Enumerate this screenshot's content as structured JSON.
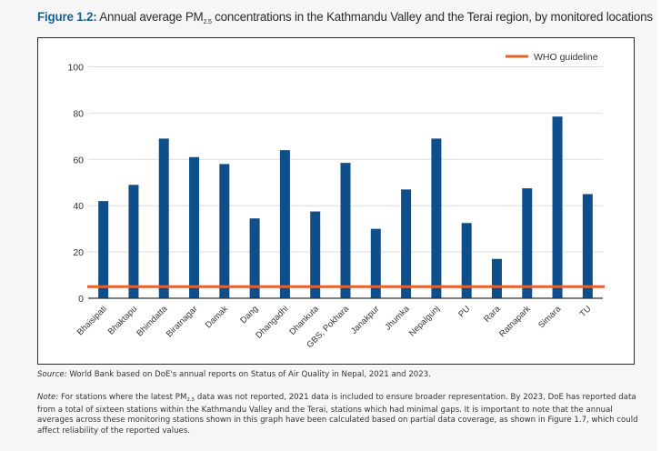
{
  "figure": {
    "label": "Figure 1.2:",
    "title_before_sub": "Annual average PM",
    "title_sub": "2.5",
    "title_after_sub": " concentrations in the Kathmandu Valley and the Terai region, by monitored locations"
  },
  "colors": {
    "bar": "#0e4f8b",
    "who_line": "#e8602c",
    "gridline": "#dddddd",
    "axis": "#333333",
    "title_accent": "#1b5e8c"
  },
  "chart_data": {
    "type": "bar",
    "title": "Annual average PM2.5 concentrations in the Kathmandu Valley and the Terai region, by monitored locations",
    "xlabel": "",
    "ylabel": "",
    "ylim": [
      0,
      100
    ],
    "yticks": [
      0,
      20,
      40,
      60,
      80,
      100
    ],
    "grid": true,
    "legend_position": "top-right",
    "categories": [
      "Bhaisipati",
      "Bhaktapu",
      "Bhimdatta",
      "Biratnagar",
      "Damak",
      "Dang",
      "Dhangadhi",
      "Dhankuta",
      "GBS, Pokhara",
      "Janakpur",
      "Jhumka",
      "Nepalgunj",
      "PU",
      "Rara",
      "Ratnapark",
      "Simara",
      "TU"
    ],
    "series": [
      {
        "name": "PM2.5 annual average",
        "values": [
          42,
          49,
          69,
          61,
          58,
          34.5,
          64,
          37.5,
          58.5,
          30,
          47,
          69,
          32.5,
          17,
          47.5,
          78.5,
          45
        ]
      }
    ],
    "reference_lines": [
      {
        "name": "WHO guideline",
        "value": 5
      }
    ],
    "legend": [
      "WHO guideline"
    ]
  },
  "source": {
    "label": "Source:",
    "text": " World Bank based on DoE's annual reports on Status of Air Quality in Nepal, 2021 and 2023."
  },
  "note": {
    "label": "Note:",
    "text_before_sub": " For stations where the latest PM",
    "sub": "2.5",
    "text_after_sub": " data was not reported, 2021 data is included to ensure broader representation. By 2023, DoE has reported data from a total of sixteen stations within the Kathmandu Valley and the Terai, stations which had minimal gaps. It is important to note that the annual averages across these monitoring stations shown in this graph have been calculated based on partial data coverage, as shown in Figure 1.7, which could affect reliability of the reported values."
  }
}
